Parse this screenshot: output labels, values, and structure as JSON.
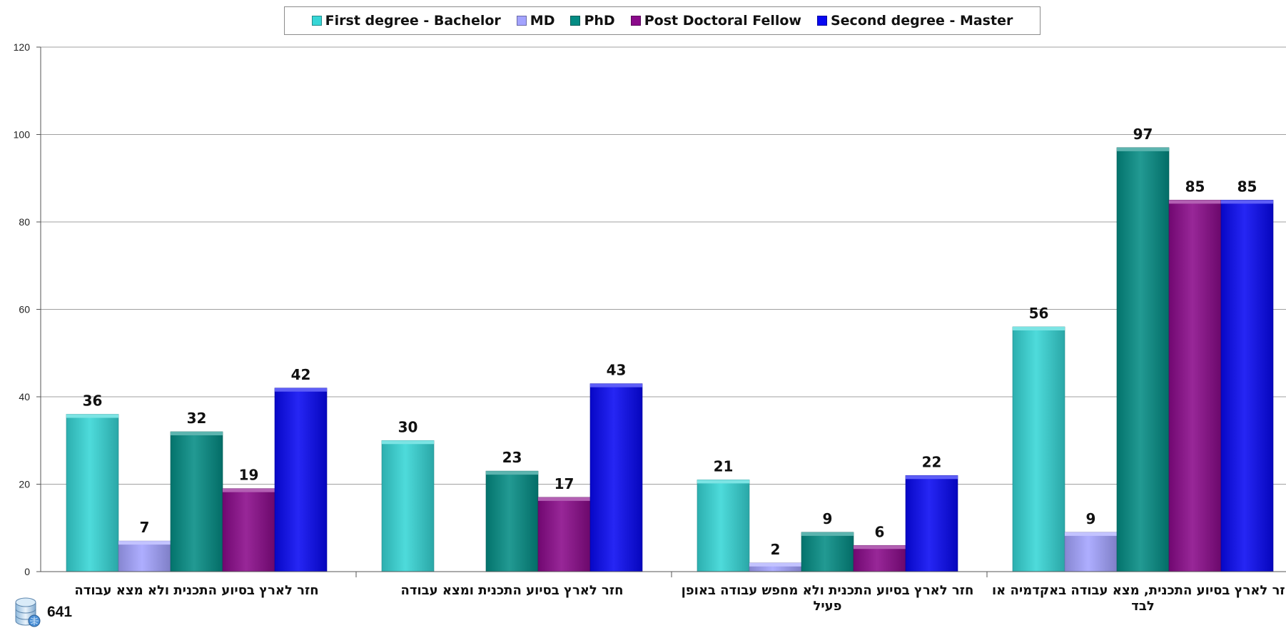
{
  "chart_data": {
    "type": "bar",
    "categories": [
      [
        "חזר לארץ בסיוע התכנית ולא מצא עבודה"
      ],
      [
        "חזר לארץ בסיוע התכנית ומצא עבודה"
      ],
      [
        "חזר לארץ בסיוע התכנית ולא מחפש עבודה באופן",
        "פעיל"
      ],
      [
        "חזר לארץ בסיוע התכנית, מצא עבודה באקדמיה או",
        "לבד"
      ]
    ],
    "series": [
      {
        "name": "First degree - Bachelor",
        "color": "#36d6d6",
        "values": [
          36,
          30,
          21,
          56
        ]
      },
      {
        "name": "MD",
        "color": "#a3a3ff",
        "values": [
          7,
          null,
          2,
          9
        ]
      },
      {
        "name": "PhD",
        "color": "#048c84",
        "values": [
          32,
          23,
          9,
          97
        ]
      },
      {
        "name": "Post Doctoral Fellow",
        "color": "#8a0a8a",
        "values": [
          19,
          17,
          6,
          85
        ]
      },
      {
        "name": "Second degree - Master",
        "color": "#0808f2",
        "values": [
          42,
          43,
          22,
          85
        ]
      }
    ],
    "ylim": [
      0,
      120
    ],
    "yticks": [
      0,
      20,
      40,
      60,
      80,
      100,
      120
    ],
    "grid": true,
    "legend": "top-center",
    "data_labels": true
  },
  "footer": {
    "icon": "database-icon",
    "count": "641"
  }
}
